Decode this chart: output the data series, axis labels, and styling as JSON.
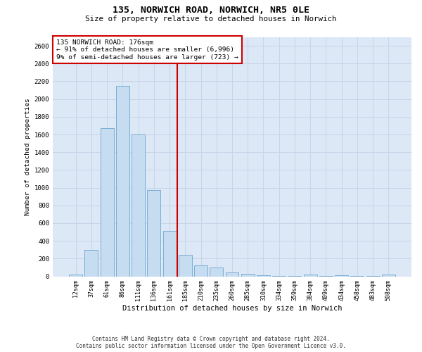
{
  "title": "135, NORWICH ROAD, NORWICH, NR5 0LE",
  "subtitle": "Size of property relative to detached houses in Norwich",
  "xlabel": "Distribution of detached houses by size in Norwich",
  "ylabel": "Number of detached properties",
  "bar_labels": [
    "12sqm",
    "37sqm",
    "61sqm",
    "86sqm",
    "111sqm",
    "136sqm",
    "161sqm",
    "185sqm",
    "210sqm",
    "235sqm",
    "260sqm",
    "285sqm",
    "310sqm",
    "334sqm",
    "359sqm",
    "384sqm",
    "409sqm",
    "434sqm",
    "458sqm",
    "483sqm",
    "508sqm"
  ],
  "bar_values": [
    20,
    300,
    1670,
    2150,
    1600,
    970,
    510,
    245,
    120,
    100,
    45,
    30,
    10,
    5,
    3,
    20,
    3,
    15,
    3,
    3,
    20
  ],
  "bar_color": "#c6dcf0",
  "bar_edge_color": "#7aadd4",
  "vline_color": "#cc0000",
  "vline_index": 7,
  "annotation_title": "135 NORWICH ROAD: 176sqm",
  "annotation_line1": "← 91% of detached houses are smaller (6,996)",
  "annotation_line2": "9% of semi-detached houses are larger (723) →",
  "ylim": [
    0,
    2700
  ],
  "yticks": [
    0,
    200,
    400,
    600,
    800,
    1000,
    1200,
    1400,
    1600,
    1800,
    2000,
    2200,
    2400,
    2600
  ],
  "grid_color": "#c8d4e8",
  "background_color": "#dce8f5",
  "footer1": "Contains HM Land Registry data © Crown copyright and database right 2024.",
  "footer2": "Contains public sector information licensed under the Open Government Licence v3.0."
}
